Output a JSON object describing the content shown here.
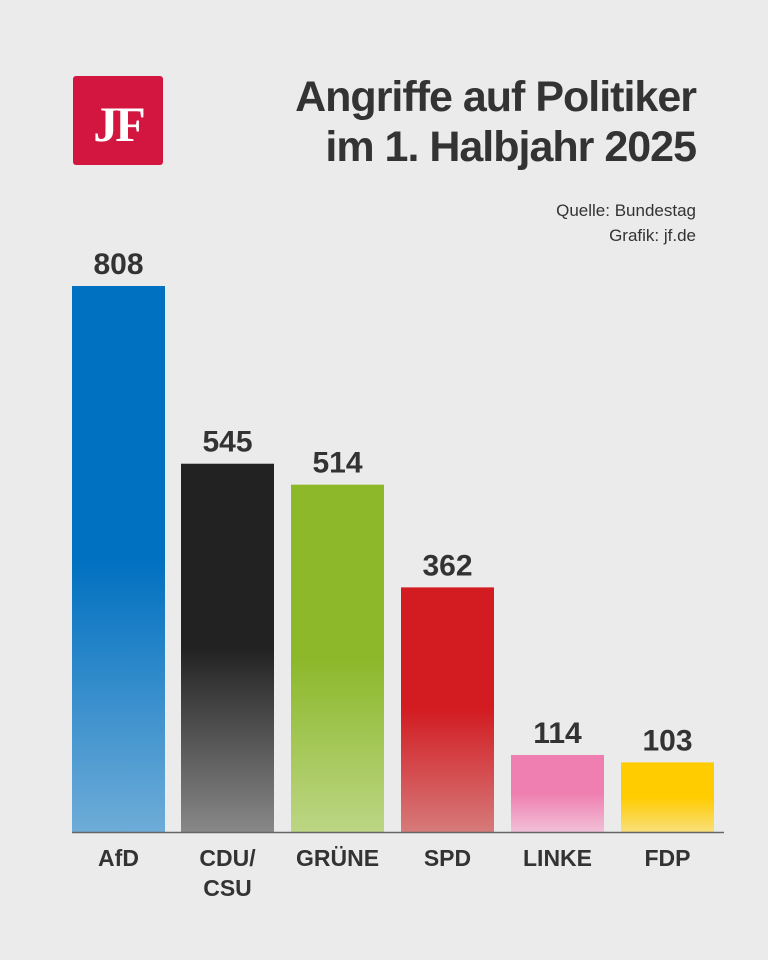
{
  "logo": {
    "text": "JF",
    "color": "#d3163f"
  },
  "title": {
    "line1": "Angriffe auf Politiker",
    "line2": "im 1. Halbjahr 2025"
  },
  "source": {
    "line1": "Quelle: Bundestag",
    "line2": "Grafik: jf.de"
  },
  "chart_data": {
    "type": "bar",
    "title": "Angriffe auf Politiker im 1. Halbjahr 2025",
    "categories": [
      [
        "AfD"
      ],
      [
        "CDU/",
        "CSU"
      ],
      [
        "GRÜNE"
      ],
      [
        "SPD"
      ],
      [
        "LINKE"
      ],
      [
        "FDP"
      ]
    ],
    "values": [
      808,
      545,
      514,
      362,
      114,
      103
    ],
    "colors": [
      "#0070c0",
      "#222222",
      "#8cb82a",
      "#d21c22",
      "#ef7fb0",
      "#ffcc00"
    ],
    "colors_bottom": [
      "#6eacd8",
      "#888888",
      "#bcd684",
      "#d67a7a",
      "#f2c0d8",
      "#f9df7a"
    ],
    "ylim": [
      0,
      808
    ],
    "grid": false,
    "data_labels": true
  }
}
